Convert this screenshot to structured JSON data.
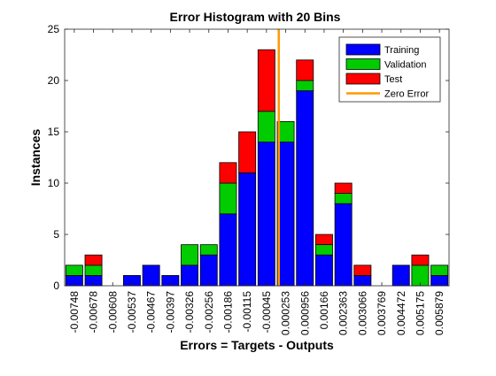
{
  "chart_data": {
    "type": "bar",
    "stacked": true,
    "title": "Error Histogram with 20 Bins",
    "xlabel": "Errors = Targets - Outputs",
    "ylabel": "Instances",
    "ylim": [
      0,
      25
    ],
    "yticks": [
      0,
      5,
      10,
      15,
      20,
      25
    ],
    "categories": [
      "-0.00748",
      "-0.00678",
      "-0.00608",
      "-0.00537",
      "-0.00467",
      "-0.00397",
      "-0.00326",
      "-0.00256",
      "-0.00186",
      "-0.00115",
      "-0.00045",
      "0.000253",
      "0.000956",
      "0.00166",
      "0.002363",
      "0.003066",
      "0.003769",
      "0.004472",
      "0.005175",
      "0.005879"
    ],
    "series": [
      {
        "name": "Training",
        "color": "#0000ff",
        "values": [
          1,
          1,
          0,
          1,
          2,
          1,
          2,
          3,
          7,
          11,
          14,
          14,
          19,
          3,
          8,
          1,
          0,
          2,
          0,
          1
        ]
      },
      {
        "name": "Validation",
        "color": "#00cc00",
        "values": [
          1,
          1,
          0,
          0,
          0,
          0,
          2,
          1,
          3,
          0,
          3,
          2,
          1,
          1,
          1,
          0,
          0,
          0,
          2,
          1
        ]
      },
      {
        "name": "Test",
        "color": "#ff0000",
        "values": [
          0,
          1,
          0,
          0,
          0,
          0,
          0,
          0,
          2,
          4,
          6,
          0,
          2,
          1,
          1,
          1,
          0,
          0,
          1,
          0
        ]
      }
    ],
    "zero_error": {
      "label": "Zero Error",
      "color": "#ff9900",
      "x": 0
    },
    "legend": {
      "position": "top-right",
      "entries": [
        {
          "label": "Training",
          "color": "#0000ff",
          "kind": "patch"
        },
        {
          "label": "Validation",
          "color": "#00cc00",
          "kind": "patch"
        },
        {
          "label": "Test",
          "color": "#ff0000",
          "kind": "patch"
        },
        {
          "label": "Zero Error",
          "color": "#ff9900",
          "kind": "line"
        }
      ]
    }
  }
}
